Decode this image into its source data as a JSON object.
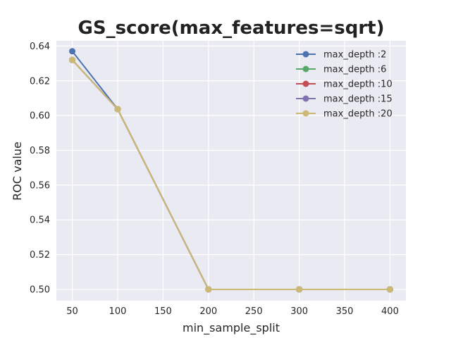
{
  "chart_data": {
    "type": "line",
    "title": "GS_score(max_features=sqrt)",
    "xlabel": "min_sample_split",
    "ylabel": "ROC value",
    "x": [
      50,
      100,
      200,
      300,
      400
    ],
    "xticks": [
      50,
      100,
      150,
      200,
      250,
      300,
      350,
      400
    ],
    "yticks": [
      0.5,
      0.52,
      0.54,
      0.56,
      0.58,
      0.6,
      0.62,
      0.64
    ],
    "xlim": [
      32.5,
      417.5
    ],
    "ylim": [
      0.4935,
      0.643
    ],
    "grid": true,
    "legend_position": "top-right",
    "series": [
      {
        "name": "max_depth :2",
        "color": "#4c72b0",
        "values": [
          0.637,
          0.6037,
          0.5,
          0.5,
          0.5
        ]
      },
      {
        "name": "max_depth :6",
        "color": "#55a868",
        "values": [
          0.632,
          0.6037,
          0.5,
          0.5,
          0.5
        ]
      },
      {
        "name": "max_depth :10",
        "color": "#c44e52",
        "values": [
          0.632,
          0.6037,
          0.5,
          0.5,
          0.5
        ]
      },
      {
        "name": "max_depth :15",
        "color": "#8172b2",
        "values": [
          0.632,
          0.6037,
          0.5,
          0.5,
          0.5
        ]
      },
      {
        "name": "max_depth :20",
        "color": "#ccb974",
        "values": [
          0.632,
          0.6037,
          0.5,
          0.5,
          0.5
        ]
      }
    ],
    "colors": {
      "plot_background": "#eaeaf2",
      "grid": "#ffffff"
    }
  }
}
